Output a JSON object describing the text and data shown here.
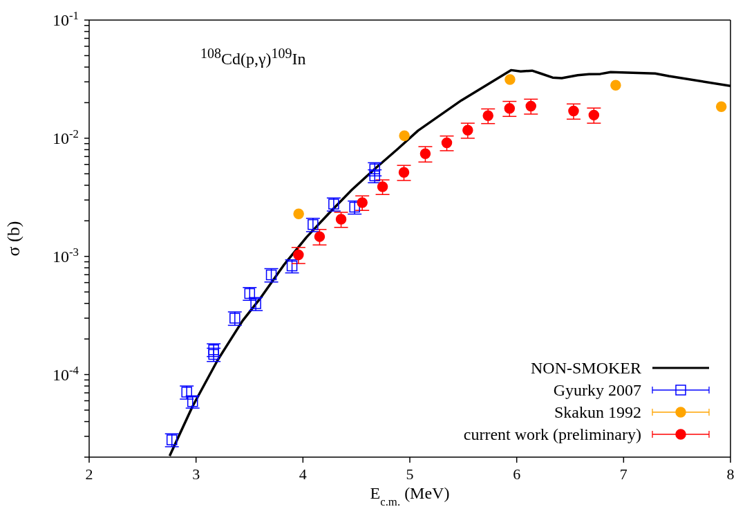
{
  "chart_data": {
    "type": "scatter",
    "xlabel": "E$_{c.m.}$ (MeV)",
    "ylabel": "σ (b)",
    "annotations": [
      "$^{108}$Cd(p,γ)$^{109}$In"
    ],
    "log": "y",
    "grid": false,
    "legend": "bottom right",
    "xlim": [
      2,
      8
    ],
    "xticks": [
      2,
      3,
      4,
      5,
      6,
      7,
      8
    ],
    "ylim": [
      2e-05,
      0.1
    ],
    "yticks": [
      {
        "value": 2e-05,
        "label": null
      },
      {
        "value": 3e-05,
        "label": null
      },
      {
        "value": 4e-05,
        "label": null
      },
      {
        "value": 5e-05,
        "label": null
      },
      {
        "value": 6e-05,
        "label": null
      },
      {
        "value": 7e-05,
        "label": null
      },
      {
        "value": 8e-05,
        "label": null
      },
      {
        "value": 9e-05,
        "label": null
      },
      {
        "value": 0.0001,
        "label": "10$^{-4}$"
      },
      {
        "value": 0.0002,
        "label": null
      },
      {
        "value": 0.0003,
        "label": null
      },
      {
        "value": 0.0004,
        "label": null
      },
      {
        "value": 0.0005,
        "label": null
      },
      {
        "value": 0.0006,
        "label": null
      },
      {
        "value": 0.0007,
        "label": null
      },
      {
        "value": 0.0008,
        "label": null
      },
      {
        "value": 0.0009,
        "label": null
      },
      {
        "value": 0.001,
        "label": "10$^{-3}$"
      },
      {
        "value": 0.002,
        "label": null
      },
      {
        "value": 0.003,
        "label": null
      },
      {
        "value": 0.004,
        "label": null
      },
      {
        "value": 0.005,
        "label": null
      },
      {
        "value": 0.006,
        "label": null
      },
      {
        "value": 0.007,
        "label": null
      },
      {
        "value": 0.008,
        "label": null
      },
      {
        "value": 0.009,
        "label": null
      },
      {
        "value": 0.01,
        "label": "10$^{-2}$"
      },
      {
        "value": 0.02,
        "label": null
      },
      {
        "value": 0.03,
        "label": null
      },
      {
        "value": 0.04,
        "label": null
      },
      {
        "value": 0.05,
        "label": null
      },
      {
        "value": 0.06,
        "label": null
      },
      {
        "value": 0.07,
        "label": null
      },
      {
        "value": 0.08,
        "label": null
      },
      {
        "value": 0.09,
        "label": null
      },
      {
        "value": 0.1,
        "label": "10$^{-1}$"
      }
    ],
    "series": [
      {
        "name": "NON-SMOKER",
        "type": "line",
        "color": "#000000",
        "marker": "none",
        "line_style": "solid",
        "x": [
          2.753,
          2.966,
          3.201,
          3.435,
          3.606,
          3.819,
          4.033,
          4.246,
          4.459,
          4.672,
          4.886,
          5.077,
          5.482,
          5.947,
          6.037,
          6.144,
          6.229,
          6.336,
          6.421,
          6.57,
          6.677,
          6.783,
          6.879,
          7.295,
          7.423,
          8.0
        ],
        "values": [
          2.05e-05,
          5.35e-05,
          0.000132,
          0.000285,
          0.000448,
          0.00084,
          0.00145,
          0.00233,
          0.00367,
          0.0055,
          0.0081,
          0.0116,
          0.0209,
          0.0377,
          0.0368,
          0.0373,
          0.0352,
          0.0326,
          0.0322,
          0.0341,
          0.0348,
          0.035,
          0.0363,
          0.0353,
          0.0336,
          0.0277
        ]
      },
      {
        "name": "Gyurky 2007",
        "color": "#0000ff",
        "marker": "square",
        "x": [
          2.774,
          2.913,
          2.968,
          3.165,
          3.165,
          3.363,
          3.502,
          3.559,
          3.704,
          3.898,
          4.094,
          4.288,
          4.484,
          4.672,
          4.672
        ],
        "values": [
          2.8e-05,
          7.1e-05,
          5.9e-05,
          0.000162,
          0.000148,
          0.0003,
          0.000485,
          0.000398,
          0.000697,
          0.00083,
          0.00186,
          0.00277,
          0.00261,
          0.0055,
          0.0048
        ],
        "errors": [
          3.5e-06,
          9e-06,
          7e-06,
          2e-05,
          1.9e-05,
          3.9e-05,
          6e-05,
          5e-05,
          9e-05,
          0.000105,
          0.00024,
          0.00035,
          0.00033,
          0.0007,
          0.0006
        ]
      },
      {
        "name": "Skakun 1992",
        "color": "#ffa500",
        "marker": "circle",
        "x": [
          3.96,
          4.949,
          5.937,
          6.926,
          7.914
        ],
        "values": [
          0.00229,
          0.0105,
          0.0314,
          0.0281,
          0.0185
        ]
      },
      {
        "name": "current work (preliminary)",
        "color": "#ff0000",
        "marker": "circle",
        "x": [
          3.958,
          4.156,
          4.357,
          4.555,
          4.745,
          4.945,
          5.145,
          5.346,
          5.542,
          5.732,
          5.933,
          6.133,
          6.532,
          6.722
        ],
        "values": [
          0.00103,
          0.00147,
          0.00206,
          0.00285,
          0.00389,
          0.00514,
          0.00739,
          0.00914,
          0.0117,
          0.0155,
          0.0179,
          0.0187,
          0.017,
          0.0157
        ],
        "errors": [
          0.00016,
          0.00022,
          0.0003,
          0.0004,
          0.00055,
          0.00075,
          0.0011,
          0.0013,
          0.0017,
          0.0022,
          0.0026,
          0.0027,
          0.0025,
          0.0023
        ]
      }
    ]
  }
}
